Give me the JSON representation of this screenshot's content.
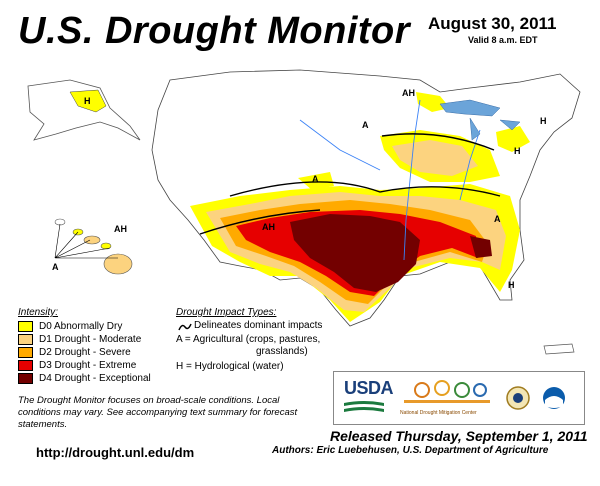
{
  "header": {
    "title": "U.S. Drought Monitor",
    "date": "August 30, 2011",
    "valid": "Valid 8 a.m. EDT"
  },
  "legend": {
    "intensity_title": "Intensity:",
    "items": [
      {
        "label": "D0 Abnormally Dry",
        "color": "#ffff00"
      },
      {
        "label": "D1 Drought - Moderate",
        "color": "#fcd37f"
      },
      {
        "label": "D2 Drought - Severe",
        "color": "#ffaa00"
      },
      {
        "label": "D3 Drought - Extreme",
        "color": "#e60000"
      },
      {
        "label": "D4 Drought - Exceptional",
        "color": "#730000"
      }
    ],
    "impact_title": "Drought Impact Types:",
    "impact_line": "Delineates dominant impacts",
    "impact_a1": "A = Agricultural (crops, pastures,",
    "impact_a2": "grasslands)",
    "impact_h": "H = Hydrological (water)"
  },
  "map": {
    "labels": [
      "AH",
      "A",
      "H",
      "A",
      "A",
      "AH",
      "H",
      "A",
      "H",
      "AH",
      "H"
    ]
  },
  "footer": {
    "note": "The Drought Monitor focuses on broad-scale conditions. Local conditions may vary. See accompanying text summary for forecast statements.",
    "url": "http://drought.unl.edu/dm",
    "released": "Released Thursday, September 1, 2011",
    "authors": "Authors: Eric Luebehusen, U.S. Department of Agriculture"
  },
  "logos": {
    "usda": "USDA",
    "ndmc": "National Drought Mitigation Center"
  }
}
